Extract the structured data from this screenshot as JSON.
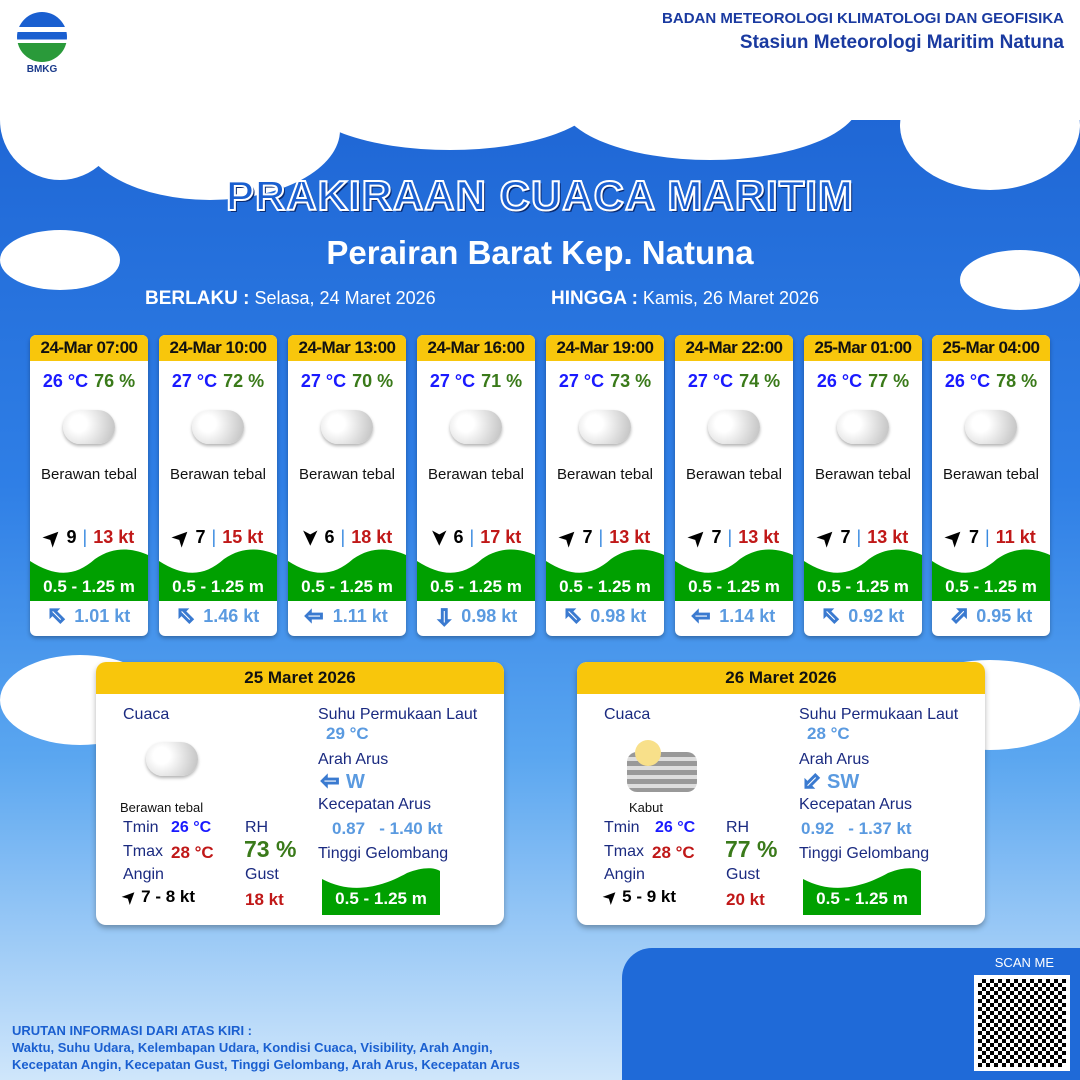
{
  "header": {
    "logo_text": "BMKG",
    "org": "BADAN METEOROLOGI KLIMATOLOGI DAN GEOFISIKA",
    "station": "Stasiun Meteorologi Maritim Natuna"
  },
  "title": "PRAKIRAAN CUACA MARITIM",
  "subtitle": "Perairan Barat Kep. Natuna",
  "validity": {
    "from_label": "BERLAKU :",
    "from": "Selasa, 24 Maret 2026",
    "to_label": "HINGGA :",
    "to": "Kamis, 26 Maret 2026"
  },
  "colors": {
    "header_yellow": "#f8c60c",
    "wave_green": "#00a000",
    "temp_blue": "#1a1aff",
    "rh_green": "#3a7a1a",
    "gust_red": "#c01818",
    "current_blue": "#5a9ae0"
  },
  "forecasts": [
    {
      "time": "24-Mar 07:00",
      "temp": "26 °C",
      "rh": "76 %",
      "icon": "cloud-icon",
      "cond": "Berawan tebal",
      "wind_dir": "northeast",
      "wind": "9",
      "gust": "13 kt",
      "wave": "0.5 - 1.25 m",
      "cur_dir": "northwest",
      "cur": "1.01 kt"
    },
    {
      "time": "24-Mar 10:00",
      "temp": "27 °C",
      "rh": "72 %",
      "icon": "cloud-icon",
      "cond": "Berawan tebal",
      "wind_dir": "northeast",
      "wind": "7",
      "gust": "15 kt",
      "wave": "0.5 - 1.25 m",
      "cur_dir": "northwest",
      "cur": "1.46 kt"
    },
    {
      "time": "24-Mar 13:00",
      "temp": "27 °C",
      "rh": "70 %",
      "icon": "cloud-icon",
      "cond": "Berawan tebal",
      "wind_dir": "south",
      "wind": "6",
      "gust": "18 kt",
      "wave": "0.5 - 1.25 m",
      "cur_dir": "west",
      "cur": "1.11 kt"
    },
    {
      "time": "24-Mar 16:00",
      "temp": "27 °C",
      "rh": "71 %",
      "icon": "cloud-icon",
      "cond": "Berawan tebal",
      "wind_dir": "south",
      "wind": "6",
      "gust": "17 kt",
      "wave": "0.5 - 1.25 m",
      "cur_dir": "south",
      "cur": "0.98 kt"
    },
    {
      "time": "24-Mar 19:00",
      "temp": "27 °C",
      "rh": "73 %",
      "icon": "cloud-icon",
      "cond": "Berawan tebal",
      "wind_dir": "northeast",
      "wind": "7",
      "gust": "13 kt",
      "wave": "0.5 - 1.25 m",
      "cur_dir": "northwest",
      "cur": "0.98 kt"
    },
    {
      "time": "24-Mar 22:00",
      "temp": "27 °C",
      "rh": "74 %",
      "icon": "cloud-icon",
      "cond": "Berawan tebal",
      "wind_dir": "northeast",
      "wind": "7",
      "gust": "13 kt",
      "wave": "0.5 - 1.25 m",
      "cur_dir": "west",
      "cur": "1.14 kt"
    },
    {
      "time": "25-Mar 01:00",
      "temp": "26 °C",
      "rh": "77 %",
      "icon": "cloud-icon",
      "cond": "Berawan tebal",
      "wind_dir": "northeast",
      "wind": "7",
      "gust": "13 kt",
      "wave": "0.5 - 1.25 m",
      "cur_dir": "northwest",
      "cur": "0.92 kt"
    },
    {
      "time": "25-Mar 04:00",
      "temp": "26 °C",
      "rh": "78 %",
      "icon": "cloud-icon",
      "cond": "Berawan tebal",
      "wind_dir": "northeast",
      "wind": "7",
      "gust": "11 kt",
      "wave": "0.5 - 1.25 m",
      "cur_dir": "northeast",
      "cur": "0.95 kt"
    }
  ],
  "labels": {
    "cuaca": "Cuaca",
    "sst": "Suhu Permukaan Laut",
    "arah": "Arah Arus",
    "kec": "Kecepatan Arus",
    "tinggi": "Tinggi Gelombang",
    "tmin": "Tmin",
    "tmax": "Tmax",
    "rh": "RH",
    "angin": "Angin",
    "gust": "Gust"
  },
  "daily": [
    {
      "date": "25 Maret 2026",
      "icon": "cloud-icon",
      "cond": "Berawan tebal",
      "tmin": "26 °C",
      "tmax": "28 °C",
      "rh": "73 %",
      "wind_dir": "northeast",
      "wind": "7  - 8 kt",
      "gust": "18 kt",
      "sst": "29 °C",
      "cur_dir": "W",
      "cur_arrow": "west",
      "cur_speed": "0.87   - 1.40 kt",
      "wave": "0.5 - 1.25 m"
    },
    {
      "date": "26 Maret 2026",
      "icon": "fog-icon",
      "cond": "Kabut",
      "tmin": "26 °C",
      "tmax": "28 °C",
      "rh": "77 %",
      "wind_dir": "northeast",
      "wind": "5  - 9 kt",
      "gust": "20 kt",
      "sst": "28 °C",
      "cur_dir": "SW",
      "cur_arrow": "southwest",
      "cur_speed": "0.92   - 1.37 kt",
      "wave": "0.5 - 1.25 m"
    }
  ],
  "footer": {
    "line1": "URUTAN INFORMASI DARI ATAS KIRI :",
    "line2": "Waktu, Suhu Udara, Kelembapan Udara, Kondisi Cuaca, Visibility, Arah Angin,",
    "line3": "Kecepatan Angin, Kecepatan Gust, Tinggi Gelombang, Arah Arus, Kecepatan Arus"
  },
  "qr": {
    "label": "SCAN ME"
  }
}
